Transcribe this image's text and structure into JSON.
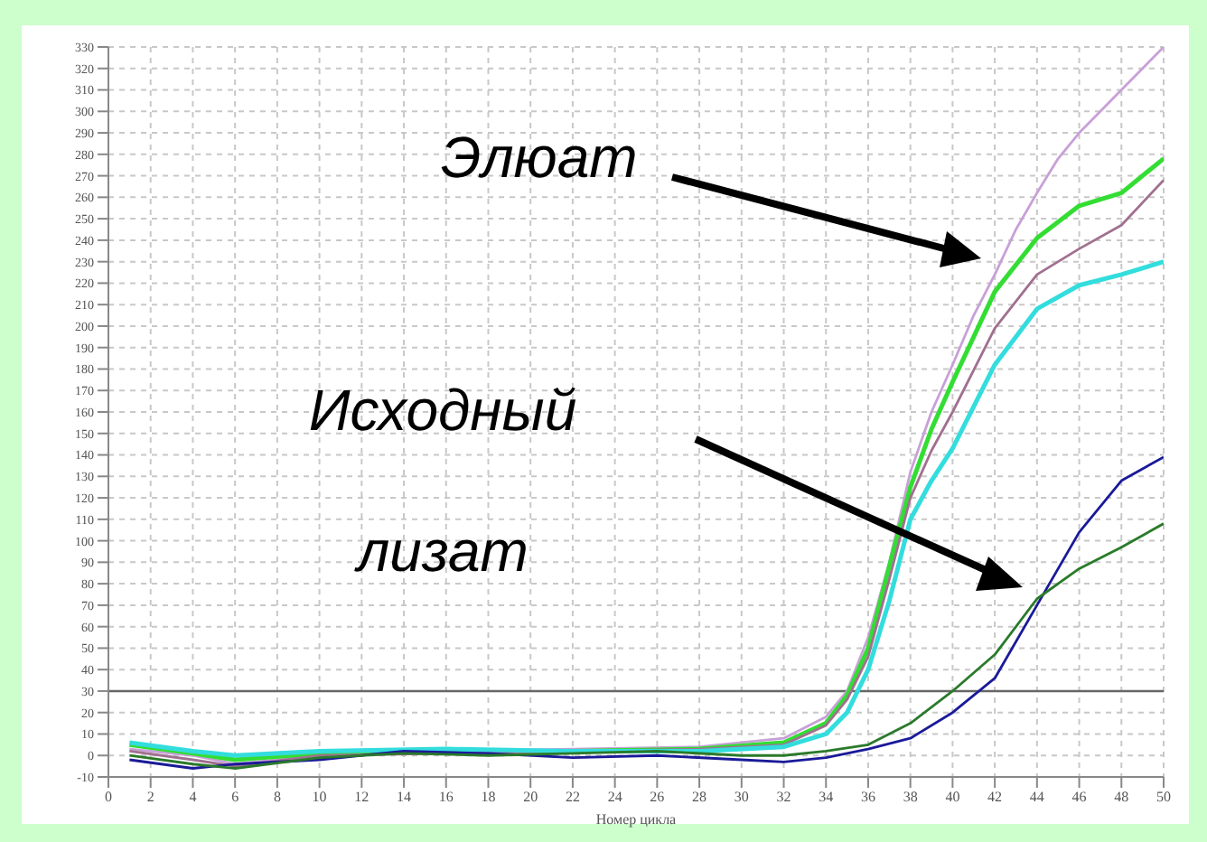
{
  "chart_data": {
    "type": "line",
    "xlabel": "Номер цикла",
    "xlim": [
      0,
      50
    ],
    "xticks": [
      0,
      2,
      4,
      6,
      8,
      10,
      12,
      14,
      16,
      18,
      20,
      22,
      24,
      26,
      28,
      30,
      32,
      34,
      36,
      38,
      40,
      42,
      44,
      46,
      48,
      50
    ],
    "ylim": [
      -10,
      330
    ],
    "yticks": [
      -10,
      0,
      10,
      20,
      30,
      40,
      50,
      60,
      70,
      80,
      90,
      100,
      110,
      120,
      130,
      140,
      150,
      160,
      170,
      180,
      190,
      200,
      210,
      220,
      230,
      240,
      250,
      260,
      270,
      280,
      290,
      300,
      310,
      320,
      330
    ],
    "grid": true,
    "line_style": "solid",
    "ref_lines": [
      {
        "axis": "y",
        "value": 30,
        "color": "#666666"
      }
    ],
    "annotations": [
      "Элюат",
      "Исходный лизат"
    ],
    "series": [
      {
        "color": "#c8a0d8",
        "x": [
          1,
          4,
          6,
          10,
          16,
          22,
          28,
          32,
          34,
          35,
          36,
          37,
          38,
          39,
          40,
          41,
          42,
          43,
          44,
          45,
          46,
          47,
          48,
          49,
          50
        ],
        "values": [
          3,
          0,
          -4,
          0,
          2,
          3,
          4,
          8,
          18,
          30,
          55,
          90,
          132,
          160,
          182,
          205,
          224,
          245,
          262,
          278,
          290,
          300,
          310,
          320,
          330
        ]
      },
      {
        "color": "#33dd33",
        "x": [
          1,
          4,
          6,
          10,
          16,
          22,
          28,
          32,
          34,
          35,
          36,
          37,
          38,
          39,
          40,
          42,
          44,
          46,
          48,
          50
        ],
        "values": [
          5,
          1,
          -2,
          1,
          2,
          2,
          3,
          6,
          15,
          28,
          50,
          88,
          125,
          152,
          174,
          216,
          241,
          256,
          262,
          278
        ]
      },
      {
        "color": "#a07090",
        "x": [
          1,
          4,
          6,
          10,
          16,
          22,
          28,
          32,
          34,
          35,
          36,
          37,
          38,
          39,
          40,
          42,
          44,
          46,
          48,
          50
        ],
        "values": [
          2,
          -2,
          -5,
          0,
          1,
          2,
          3,
          5,
          14,
          26,
          46,
          82,
          120,
          142,
          160,
          199,
          224,
          236,
          247,
          268
        ]
      },
      {
        "color": "#33dddd",
        "x": [
          1,
          4,
          6,
          10,
          16,
          22,
          28,
          32,
          34,
          35,
          36,
          37,
          38,
          39,
          40,
          42,
          44,
          46,
          48,
          50
        ],
        "values": [
          6,
          2,
          0,
          2,
          3,
          2,
          2,
          4,
          10,
          20,
          40,
          72,
          110,
          128,
          143,
          182,
          208,
          219,
          224,
          230
        ]
      },
      {
        "color": "#1a1a99",
        "x": [
          1,
          4,
          6,
          10,
          14,
          18,
          22,
          26,
          30,
          32,
          34,
          36,
          38,
          40,
          41,
          42,
          44,
          46,
          48,
          50
        ],
        "values": [
          -2,
          -6,
          -4,
          -2,
          2,
          1,
          -1,
          0,
          -2,
          -3,
          -1,
          3,
          8,
          20,
          28,
          36,
          70,
          104,
          128,
          139
        ]
      },
      {
        "color": "#2a7a2a",
        "x": [
          1,
          4,
          6,
          10,
          14,
          18,
          22,
          26,
          30,
          32,
          34,
          36,
          38,
          40,
          42,
          44,
          46,
          48,
          50
        ],
        "values": [
          0,
          -4,
          -6,
          -1,
          1,
          0,
          1,
          2,
          0,
          0,
          2,
          5,
          15,
          30,
          47,
          73,
          87,
          97,
          108
        ]
      }
    ]
  }
}
